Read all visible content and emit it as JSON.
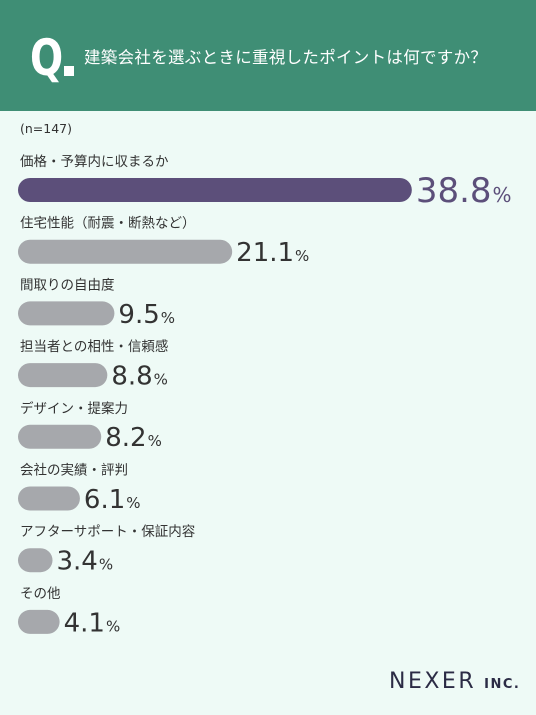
{
  "header": {
    "q_mark": "Q",
    "question": "建築会社を選ぶときに重視したポイントは何ですか？"
  },
  "sample_size": "(n=147)",
  "logo": {
    "main": "NEXER",
    "sub": "INC."
  },
  "colors": {
    "header_bg": "#3f8e75",
    "highlight_bar": "#5c4f7a",
    "bar": "#a6a8ac",
    "text": "#333333"
  },
  "chart_data": {
    "type": "bar",
    "orientation": "horizontal",
    "title": "建築会社を選ぶときに重視したポイントは何ですか？",
    "xlabel": "",
    "ylabel": "",
    "unit": "%",
    "categories": [
      "価格・予算内に収まるか",
      "住宅性能（耐震・断熱など）",
      "間取りの自由度",
      "担当者との相性・信頼感",
      "デザイン・提案力",
      "会社の実績・評判",
      "アフターサポート・保証内容",
      "その他"
    ],
    "values": [
      38.8,
      21.1,
      9.5,
      8.8,
      8.2,
      6.1,
      3.4,
      4.1
    ],
    "labels": [
      "38.8",
      "21.1",
      "9.5",
      "8.8",
      "8.2",
      "6.1",
      "3.4",
      "4.1"
    ],
    "highlight_index": 0,
    "grid": false,
    "legend": "none"
  }
}
